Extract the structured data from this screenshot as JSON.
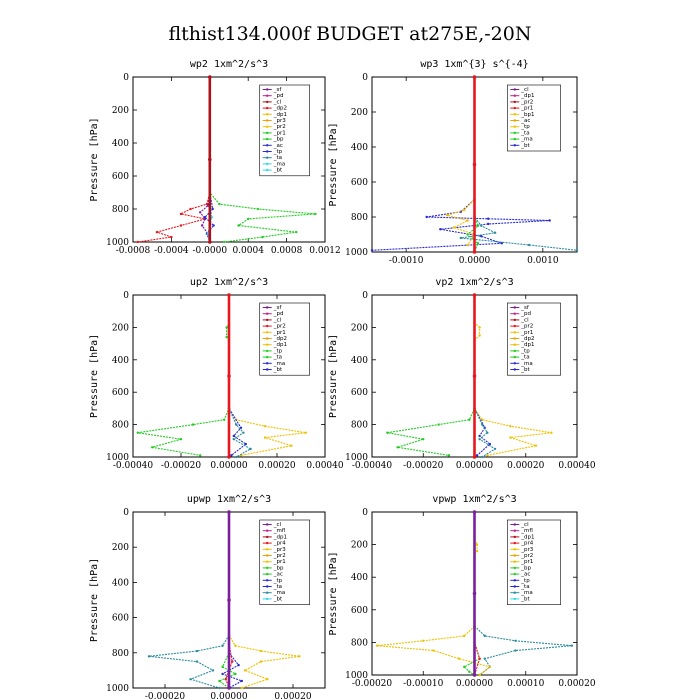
{
  "title": "flthist134.000f  BUDGET at275E,-20N",
  "colors": {
    "background": "#ffffff",
    "axis": "#000000",
    "red": "#e8161d",
    "darkred": "#b0101a",
    "purple": "#7b1f9e",
    "magenta": "#c0208c",
    "green": "#22cc22",
    "yellow": "#f0c000",
    "blue": "#2a2ad0",
    "teal": "#2a8ca0",
    "cyan": "#30d8e8"
  },
  "chart_data": [
    {
      "type": "line",
      "title": "wp2   1xm^2/s^3",
      "ylabel": "Pressure [hPa]",
      "ylim": [
        1000,
        0
      ],
      "yticks": [
        0,
        200,
        400,
        600,
        800,
        1000
      ],
      "xlim": [
        -0.0008,
        0.0012
      ],
      "xticks": [
        -0.0008,
        -0.0004,
        0.0,
        0.0004,
        0.0008,
        0.0012
      ],
      "xtick_labels": [
        "-0.0008",
        "-0.0004",
        "-0.0000",
        "0.0004",
        "0.0008",
        "0.0012"
      ],
      "legend": [
        "_sf",
        "_pd",
        "_cl",
        "_dp2",
        "_dp1",
        "_pr3",
        "_pr2",
        "_pr1",
        "_bp",
        "_ac",
        "_tp",
        "_ta",
        "_ma",
        "_bt"
      ],
      "series": [
        {
          "name": "_dp2",
          "color": "#e8161d",
          "x": [
            0,
            0,
            -3e-05,
            -0.0002,
            -0.0003,
            -5e-05,
            -0.0003,
            -0.00055,
            -0.0004,
            -0.00075
          ],
          "y": [
            0,
            700,
            770,
            800,
            830,
            860,
            900,
            940,
            970,
            1000
          ]
        },
        {
          "name": "_ac",
          "color": "#22cc22",
          "x": [
            0,
            0,
            0.0001,
            0.0005,
            0.0011,
            0.0004,
            0.0003,
            0.0009,
            0.00055,
            0.00015
          ],
          "y": [
            0,
            700,
            770,
            800,
            830,
            860,
            900,
            940,
            970,
            1000
          ]
        },
        {
          "name": "_pd",
          "color": "#7b1f9e",
          "x": [
            0,
            0,
            -2e-05,
            -0.0001,
            -5e-05,
            -8e-05,
            -2e-05,
            0
          ],
          "y": [
            0,
            700,
            780,
            820,
            860,
            900,
            950,
            1000
          ]
        },
        {
          "name": "_tp",
          "color": "#2a2ad0",
          "x": [
            0,
            0,
            3e-05,
            -5e-05,
            4e-05,
            -3e-05,
            0
          ],
          "y": [
            0,
            700,
            800,
            850,
            900,
            950,
            1000
          ]
        },
        {
          "name": "_bt",
          "color": "#30d8e8",
          "x": [
            0,
            0,
            2e-05,
            -2e-05,
            0
          ],
          "y": [
            0,
            700,
            850,
            950,
            1000
          ]
        },
        {
          "name": "_sf",
          "color": "#b0101a",
          "x": [
            0,
            0,
            0
          ],
          "y": [
            0,
            500,
            1000
          ]
        }
      ]
    },
    {
      "type": "line",
      "title": "wp3   1xm^{3} s^{-4}",
      "ylabel": "Pressure [hPa]",
      "ylim": [
        1000,
        0
      ],
      "yticks": [
        0,
        200,
        400,
        600,
        800,
        1000
      ],
      "xlim": [
        -0.0015,
        0.0015
      ],
      "xticks": [
        -0.001,
        0.0,
        0.001
      ],
      "xtick_labels": [
        "-0.0010",
        "0.0000",
        "0.0010"
      ],
      "legend": [
        "_cl",
        "_dp1",
        "_pr2",
        "_pr1",
        "_bp1",
        "_ac",
        "_tp",
        "_ta",
        "_ma",
        "_bt"
      ],
      "series": [
        {
          "name": "_tp",
          "color": "#2a2ad0",
          "x": [
            0,
            0,
            -0.0002,
            -0.0007,
            0.0002,
            0.0011,
            0.0002,
            -0.0005,
            0.0001,
            0.0004,
            -0.0015
          ],
          "y": [
            0,
            700,
            770,
            800,
            810,
            820,
            840,
            870,
            910,
            950,
            990
          ]
        },
        {
          "name": "_pr2",
          "color": "#f0c000",
          "x": [
            0,
            0,
            -0.00015,
            -0.0004,
            -0.0001,
            -0.0003,
            0,
            -0.0001
          ],
          "y": [
            0,
            700,
            760,
            790,
            820,
            860,
            900,
            960
          ]
        },
        {
          "name": "_ma",
          "color": "#2a8ca0",
          "x": [
            0,
            0,
            0.0001,
            0.0003,
            -0.0002,
            0.0008,
            0.0015
          ],
          "y": [
            0,
            800,
            850,
            890,
            920,
            960,
            990
          ]
        },
        {
          "name": "_ac",
          "color": "#22cc22",
          "x": [
            0,
            0,
            5e-05,
            -0.0001,
            5e-05,
            0
          ],
          "y": [
            0,
            800,
            850,
            900,
            950,
            1000
          ]
        },
        {
          "name": "_dp1",
          "color": "#e8161d",
          "x": [
            0,
            0,
            0
          ],
          "y": [
            0,
            500,
            1000
          ]
        }
      ]
    },
    {
      "type": "line",
      "title": "up2   1xm^2/s^3",
      "ylabel": "Pressure [hPa]",
      "ylim": [
        1000,
        0
      ],
      "yticks": [
        0,
        200,
        400,
        600,
        800,
        1000
      ],
      "xlim": [
        -0.0004,
        0.0004
      ],
      "xticks": [
        -0.0004,
        -0.0002,
        0.0,
        0.0002,
        0.0004
      ],
      "xtick_labels": [
        "-0.00040",
        "-0.00020",
        "0.00000",
        "0.00020",
        "0.00040"
      ],
      "legend": [
        "_sf",
        "_pd",
        "_cl",
        "_pr2",
        "_pr1",
        "_dp2",
        "_dp1",
        "_tp",
        "_ta",
        "_ma",
        "_bt"
      ],
      "series": [
        {
          "name": "_dp2",
          "color": "#22cc22",
          "x": [
            0,
            0,
            -1e-05,
            -1e-05,
            0,
            0,
            -2e-05,
            -0.00015,
            -0.00038,
            -0.0002,
            -0.00032,
            -0.00012
          ],
          "y": [
            0,
            180,
            200,
            260,
            280,
            700,
            770,
            800,
            850,
            890,
            940,
            990
          ]
        },
        {
          "name": "_pr2",
          "color": "#f0c000",
          "x": [
            0,
            0,
            3e-05,
            0.00015,
            0.00032,
            0.00015,
            0.00026,
            5e-05
          ],
          "y": [
            0,
            700,
            770,
            810,
            850,
            880,
            930,
            990
          ]
        },
        {
          "name": "_tp",
          "color": "#2a2ad0",
          "x": [
            0,
            0,
            5e-05,
            2e-05,
            7e-05,
            1e-05
          ],
          "y": [
            0,
            700,
            820,
            870,
            920,
            990
          ]
        },
        {
          "name": "_ma",
          "color": "#2a8ca0",
          "x": [
            0,
            0,
            3e-05,
            6e-05,
            2e-05,
            9e-05,
            3e-05
          ],
          "y": [
            0,
            700,
            800,
            850,
            890,
            950,
            1000
          ]
        },
        {
          "name": "_sf",
          "color": "#e8161d",
          "x": [
            0,
            0,
            0
          ],
          "y": [
            0,
            500,
            1000
          ]
        }
      ]
    },
    {
      "type": "line",
      "title": "vp2   1xm^2/s^3",
      "ylabel": "Pressure [hPa]",
      "ylim": [
        1000,
        0
      ],
      "yticks": [
        0,
        200,
        400,
        600,
        800,
        1000
      ],
      "xlim": [
        -0.0004,
        0.0004
      ],
      "xticks": [
        -0.0004,
        -0.0002,
        0.0,
        0.0002,
        0.0004
      ],
      "xtick_labels": [
        "-0.00040",
        "-0.00020",
        "0.00000",
        "0.00020",
        "0.00040"
      ],
      "legend": [
        "_sf",
        "_pd",
        "_cl",
        "_pr2",
        "_pr1",
        "_dp2",
        "_dp1",
        "_tp",
        "_ta",
        "_ma",
        "_bt"
      ],
      "series": [
        {
          "name": "_dp2",
          "color": "#22cc22",
          "x": [
            0,
            0,
            -2e-05,
            -0.00014,
            -0.00034,
            -0.0002,
            -0.0003,
            -0.0001
          ],
          "y": [
            0,
            700,
            770,
            800,
            850,
            890,
            940,
            990
          ]
        },
        {
          "name": "_pr2",
          "color": "#f0c000",
          "x": [
            0,
            0,
            2e-05,
            2e-05,
            0,
            0,
            3e-05,
            0.00014,
            0.0003,
            0.00014,
            0.00024,
            5e-05
          ],
          "y": [
            0,
            170,
            200,
            250,
            280,
            700,
            770,
            810,
            850,
            880,
            930,
            990
          ]
        },
        {
          "name": "_tp",
          "color": "#2a2ad0",
          "x": [
            0,
            0,
            4e-05,
            2e-05,
            6e-05,
            1e-05
          ],
          "y": [
            0,
            700,
            820,
            870,
            920,
            990
          ]
        },
        {
          "name": "_ma",
          "color": "#2a8ca0",
          "x": [
            0,
            0,
            3e-05,
            5e-05,
            2e-05,
            8e-05,
            3e-05
          ],
          "y": [
            0,
            700,
            800,
            850,
            890,
            950,
            1000
          ]
        },
        {
          "name": "_sf",
          "color": "#e8161d",
          "x": [
            0,
            0,
            0
          ],
          "y": [
            0,
            500,
            1000
          ]
        }
      ]
    },
    {
      "type": "line",
      "title": "upwp   1xm^2/s^3",
      "ylabel": "Pressure [hPa]",
      "ylim": [
        1000,
        0
      ],
      "yticks": [
        0,
        200,
        400,
        600,
        800,
        1000
      ],
      "xlim": [
        -0.0003,
        0.0003
      ],
      "xticks": [
        -0.0002,
        0.0,
        0.0002
      ],
      "xtick_labels": [
        "-0.00020",
        "0.00000",
        "0.00020"
      ],
      "legend": [
        "_cl",
        "_mfl",
        "_dp1",
        "_pr4",
        "_pr3",
        "_pr2",
        "_pr1",
        "_bp",
        "_ac",
        "_tp",
        "_ta",
        "_ma",
        "_bt"
      ],
      "series": [
        {
          "name": "_ma",
          "color": "#2a8ca0",
          "x": [
            0,
            0,
            -2e-05,
            -0.0001,
            -0.00025,
            -0.0001,
            -5e-05,
            -0.00012,
            -3e-05
          ],
          "y": [
            0,
            700,
            760,
            790,
            820,
            850,
            900,
            950,
            1000
          ]
        },
        {
          "name": "_pr1",
          "color": "#f0c000",
          "x": [
            0,
            0,
            2e-05,
            0.0001,
            0.00022,
            0.0001,
            5e-05,
            0.00012,
            4e-05
          ],
          "y": [
            0,
            700,
            760,
            790,
            820,
            850,
            900,
            950,
            1000
          ]
        },
        {
          "name": "_ac",
          "color": "#22cc22",
          "x": [
            0,
            0,
            -2e-05,
            2e-05,
            -3e-05,
            0
          ],
          "y": [
            0,
            800,
            880,
            920,
            960,
            1000
          ]
        },
        {
          "name": "_tp",
          "color": "#2a2ad0",
          "x": [
            0,
            0,
            3e-05,
            -2e-05,
            4e-05,
            0
          ],
          "y": [
            0,
            800,
            870,
            920,
            960,
            1000
          ]
        },
        {
          "name": "_dp1",
          "color": "#e8161d",
          "x": [
            0,
            0,
            1e-05,
            -1e-05,
            0
          ],
          "y": [
            0,
            750,
            850,
            950,
            1000
          ]
        },
        {
          "name": "_cl",
          "color": "#7b1f9e",
          "x": [
            0,
            0,
            0
          ],
          "y": [
            0,
            500,
            1000
          ]
        }
      ]
    },
    {
      "type": "line",
      "title": "vpwp   1xm^2/s^3",
      "ylabel": "Pressure [hPa]",
      "ylim": [
        1000,
        0
      ],
      "yticks": [
        0,
        200,
        400,
        600,
        800,
        1000
      ],
      "xlim": [
        -0.0002,
        0.0002
      ],
      "xticks": [
        -0.0002,
        -0.0001,
        0.0,
        0.0001,
        0.0002
      ],
      "xtick_labels": [
        "-0.00020",
        "-0.00010",
        "0.00000",
        "0.00010",
        "0.00020"
      ],
      "legend": [
        "_cl",
        "_mfl",
        "_dp1",
        "_pr4",
        "_pr3",
        "_pr2",
        "_pr1",
        "_bp",
        "_ac",
        "_tp",
        "_ta",
        "_ma",
        "_bt"
      ],
      "series": [
        {
          "name": "_ma",
          "color": "#2a8ca0",
          "x": [
            0,
            0,
            2e-05,
            8e-05,
            0.00019,
            8e-05,
            2e-05,
            3e-05,
            1e-05
          ],
          "y": [
            0,
            700,
            760,
            790,
            820,
            850,
            900,
            950,
            1000
          ]
        },
        {
          "name": "_pr1",
          "color": "#f0c000",
          "x": [
            0,
            0,
            -2e-05,
            -0.0001,
            -0.00019,
            -8e-05,
            -3e-05,
            3e-05,
            1e-05
          ],
          "y": [
            0,
            700,
            760,
            790,
            820,
            850,
            900,
            950,
            1000
          ]
        },
        {
          "name": "_ac",
          "color": "#22cc22",
          "x": [
            0,
            0,
            1e-05,
            -2e-05,
            -1e-05,
            0
          ],
          "y": [
            0,
            800,
            900,
            950,
            980,
            1000
          ]
        },
        {
          "name": "_pr2",
          "color": "#f0c000",
          "x": [
            0,
            0,
            5e-06,
            5e-06,
            0
          ],
          "y": [
            0,
            170,
            200,
            240,
            260
          ]
        },
        {
          "name": "_dp1",
          "color": "#e8161d",
          "x": [
            0,
            0,
            1e-05,
            0
          ],
          "y": [
            0,
            800,
            900,
            1000
          ]
        },
        {
          "name": "_cl",
          "color": "#7b1f9e",
          "x": [
            0,
            0,
            0
          ],
          "y": [
            0,
            500,
            1000
          ]
        }
      ]
    }
  ]
}
